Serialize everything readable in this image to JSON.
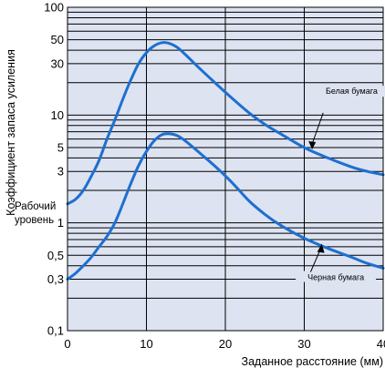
{
  "chart_data": {
    "type": "line",
    "xlabel": "Заданное расстояние (мм)",
    "ylabel": "Коэффициент запаса усиления",
    "xlim": [
      0,
      40
    ],
    "ylim": [
      0.1,
      100
    ],
    "yscale": "log",
    "x_ticks": [
      0,
      10,
      20,
      30,
      40
    ],
    "y_ticks": [
      {
        "v": 0.1,
        "label": "0,1"
      },
      {
        "v": 0.3,
        "label": "0,3"
      },
      {
        "v": 0.5,
        "label": "0,5"
      },
      {
        "v": 1,
        "label": "1"
      },
      {
        "v": 3,
        "label": "3"
      },
      {
        "v": 5,
        "label": "5"
      },
      {
        "v": 10,
        "label": "10"
      },
      {
        "v": 30,
        "label": "30"
      },
      {
        "v": 50,
        "label": "50"
      },
      {
        "v": 100,
        "label": "100"
      }
    ],
    "grid": true,
    "background": "#dde3f1",
    "line_color": "#1e6fd0",
    "series": [
      {
        "name": "Белая бумага",
        "x": [
          0,
          1,
          2,
          3,
          4,
          5,
          6,
          7,
          8,
          9,
          10,
          11,
          12,
          13,
          14,
          15,
          17,
          19,
          21,
          23,
          25,
          27,
          30,
          33,
          36,
          38,
          40
        ],
        "y": [
          1.5,
          1.65,
          2.0,
          2.7,
          3.8,
          6,
          9,
          14,
          21,
          30,
          38,
          44,
          47,
          46,
          42,
          36,
          26,
          19,
          14,
          10.5,
          8.2,
          6.7,
          5.0,
          4.0,
          3.3,
          3.0,
          2.8
        ]
      },
      {
        "name": "Черная бумага",
        "x": [
          0,
          1,
          2,
          3,
          4,
          5,
          6,
          7,
          8,
          9,
          10,
          11,
          12,
          13,
          14,
          15,
          17,
          19,
          21,
          23,
          25,
          27,
          30,
          33,
          36,
          38,
          40
        ],
        "y": [
          0.3,
          0.34,
          0.4,
          0.48,
          0.6,
          0.75,
          1.0,
          1.5,
          2.3,
          3.4,
          4.6,
          5.8,
          6.6,
          6.7,
          6.4,
          5.7,
          4.3,
          3.2,
          2.3,
          1.6,
          1.2,
          0.95,
          0.72,
          0.58,
          0.48,
          0.42,
          0.38
        ]
      }
    ],
    "annotations": {
      "white_paper": "Белая бумага",
      "black_paper": "Черная бумага",
      "operating_level": [
        "Рабочий",
        "уровень"
      ]
    }
  }
}
